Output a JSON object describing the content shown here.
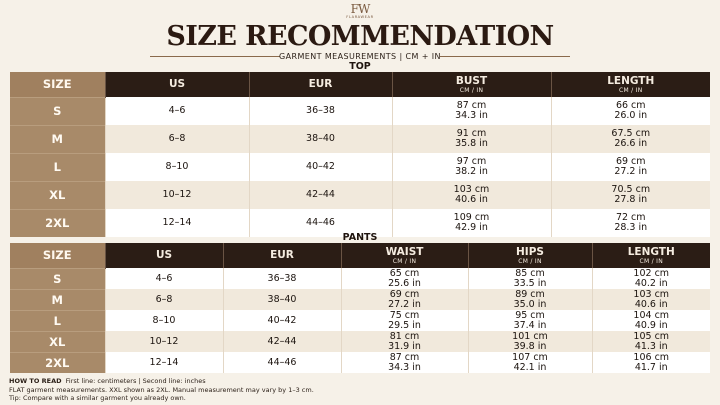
{
  "header": {
    "logo_mark": "FW",
    "logo_text": "FLARAWEAR",
    "title": "SIZE RECOMMENDATION",
    "subtitle": "GARMENT MEASUREMENTS | CM + IN"
  },
  "top": {
    "section_title": "TOP",
    "headers": {
      "size": "SIZE",
      "us": "US",
      "eur": "EUR",
      "bust": "BUST",
      "bust_unit": "CM / IN",
      "length": "LENGTH",
      "length_unit": "CM / IN"
    },
    "rows": [
      {
        "size": "S",
        "us": "4–6",
        "eur": "36–38",
        "bust_cm": "87 cm",
        "bust_in": "34.3 in",
        "length_cm": "66 cm",
        "length_in": "26.0 in"
      },
      {
        "size": "M",
        "us": "6–8",
        "eur": "38–40",
        "bust_cm": "91 cm",
        "bust_in": "35.8 in",
        "length_cm": "67.5 cm",
        "length_in": "26.6 in"
      },
      {
        "size": "L",
        "us": "8–10",
        "eur": "40–42",
        "bust_cm": "97 cm",
        "bust_in": "38.2 in",
        "length_cm": "69 cm",
        "length_in": "27.2 in"
      },
      {
        "size": "XL",
        "us": "10–12",
        "eur": "42–44",
        "bust_cm": "103 cm",
        "bust_in": "40.6 in",
        "length_cm": "70.5 cm",
        "length_in": "27.8 in"
      },
      {
        "size": "2XL",
        "us": "12–14",
        "eur": "44–46",
        "bust_cm": "109 cm",
        "bust_in": "42.9 in",
        "length_cm": "72 cm",
        "length_in": "28.3 in"
      }
    ]
  },
  "pants": {
    "section_title": "PANTS",
    "headers": {
      "size": "SIZE",
      "us": "US",
      "eur": "EUR",
      "waist": "WAIST",
      "waist_unit": "CM / IN",
      "hips": "HIPS",
      "hips_unit": "CM / IN",
      "length": "LENGTH",
      "length_unit": "CM / IN"
    },
    "rows": [
      {
        "size": "S",
        "us": "4–6",
        "eur": "36–38",
        "waist_cm": "65 cm",
        "waist_in": "25.6 in",
        "hips_cm": "85 cm",
        "hips_in": "33.5 in",
        "length_cm": "102 cm",
        "length_in": "40.2 in"
      },
      {
        "size": "M",
        "us": "6–8",
        "eur": "38–40",
        "waist_cm": "69 cm",
        "waist_in": "27.2 in",
        "hips_cm": "89 cm",
        "hips_in": "35.0 in",
        "length_cm": "103 cm",
        "length_in": "40.6 in"
      },
      {
        "size": "L",
        "us": "8–10",
        "eur": "40–42",
        "waist_cm": "75 cm",
        "waist_in": "29.5 in",
        "hips_cm": "95 cm",
        "hips_in": "37.4 in",
        "length_cm": "104 cm",
        "length_in": "40.9 in"
      },
      {
        "size": "XL",
        "us": "10–12",
        "eur": "42–44",
        "waist_cm": "81 cm",
        "waist_in": "31.9 in",
        "hips_cm": "101 cm",
        "hips_in": "39.8 in",
        "length_cm": "105 cm",
        "length_in": "41.3 in"
      },
      {
        "size": "2XL",
        "us": "12–14",
        "eur": "44–46",
        "waist_cm": "87 cm",
        "waist_in": "34.3 in",
        "hips_cm": "107 cm",
        "hips_in": "42.1 in",
        "length_cm": "106 cm",
        "length_in": "41.7 in"
      }
    ]
  },
  "footer": {
    "how_label": "HOW TO READ",
    "how_text": "First line: centimeters  |  Second line: inches",
    "note": "FLAT garment measurements. XXL shown as 2XL. Manual measurement may vary by 1–3 cm.",
    "tip": "Tip: Compare with a similar garment you already own."
  },
  "colors": {
    "background": "#f6f1e8",
    "header_dark": "#2b1d15",
    "size_column": "#a88a69",
    "row_alt": "#f1e9dc"
  }
}
